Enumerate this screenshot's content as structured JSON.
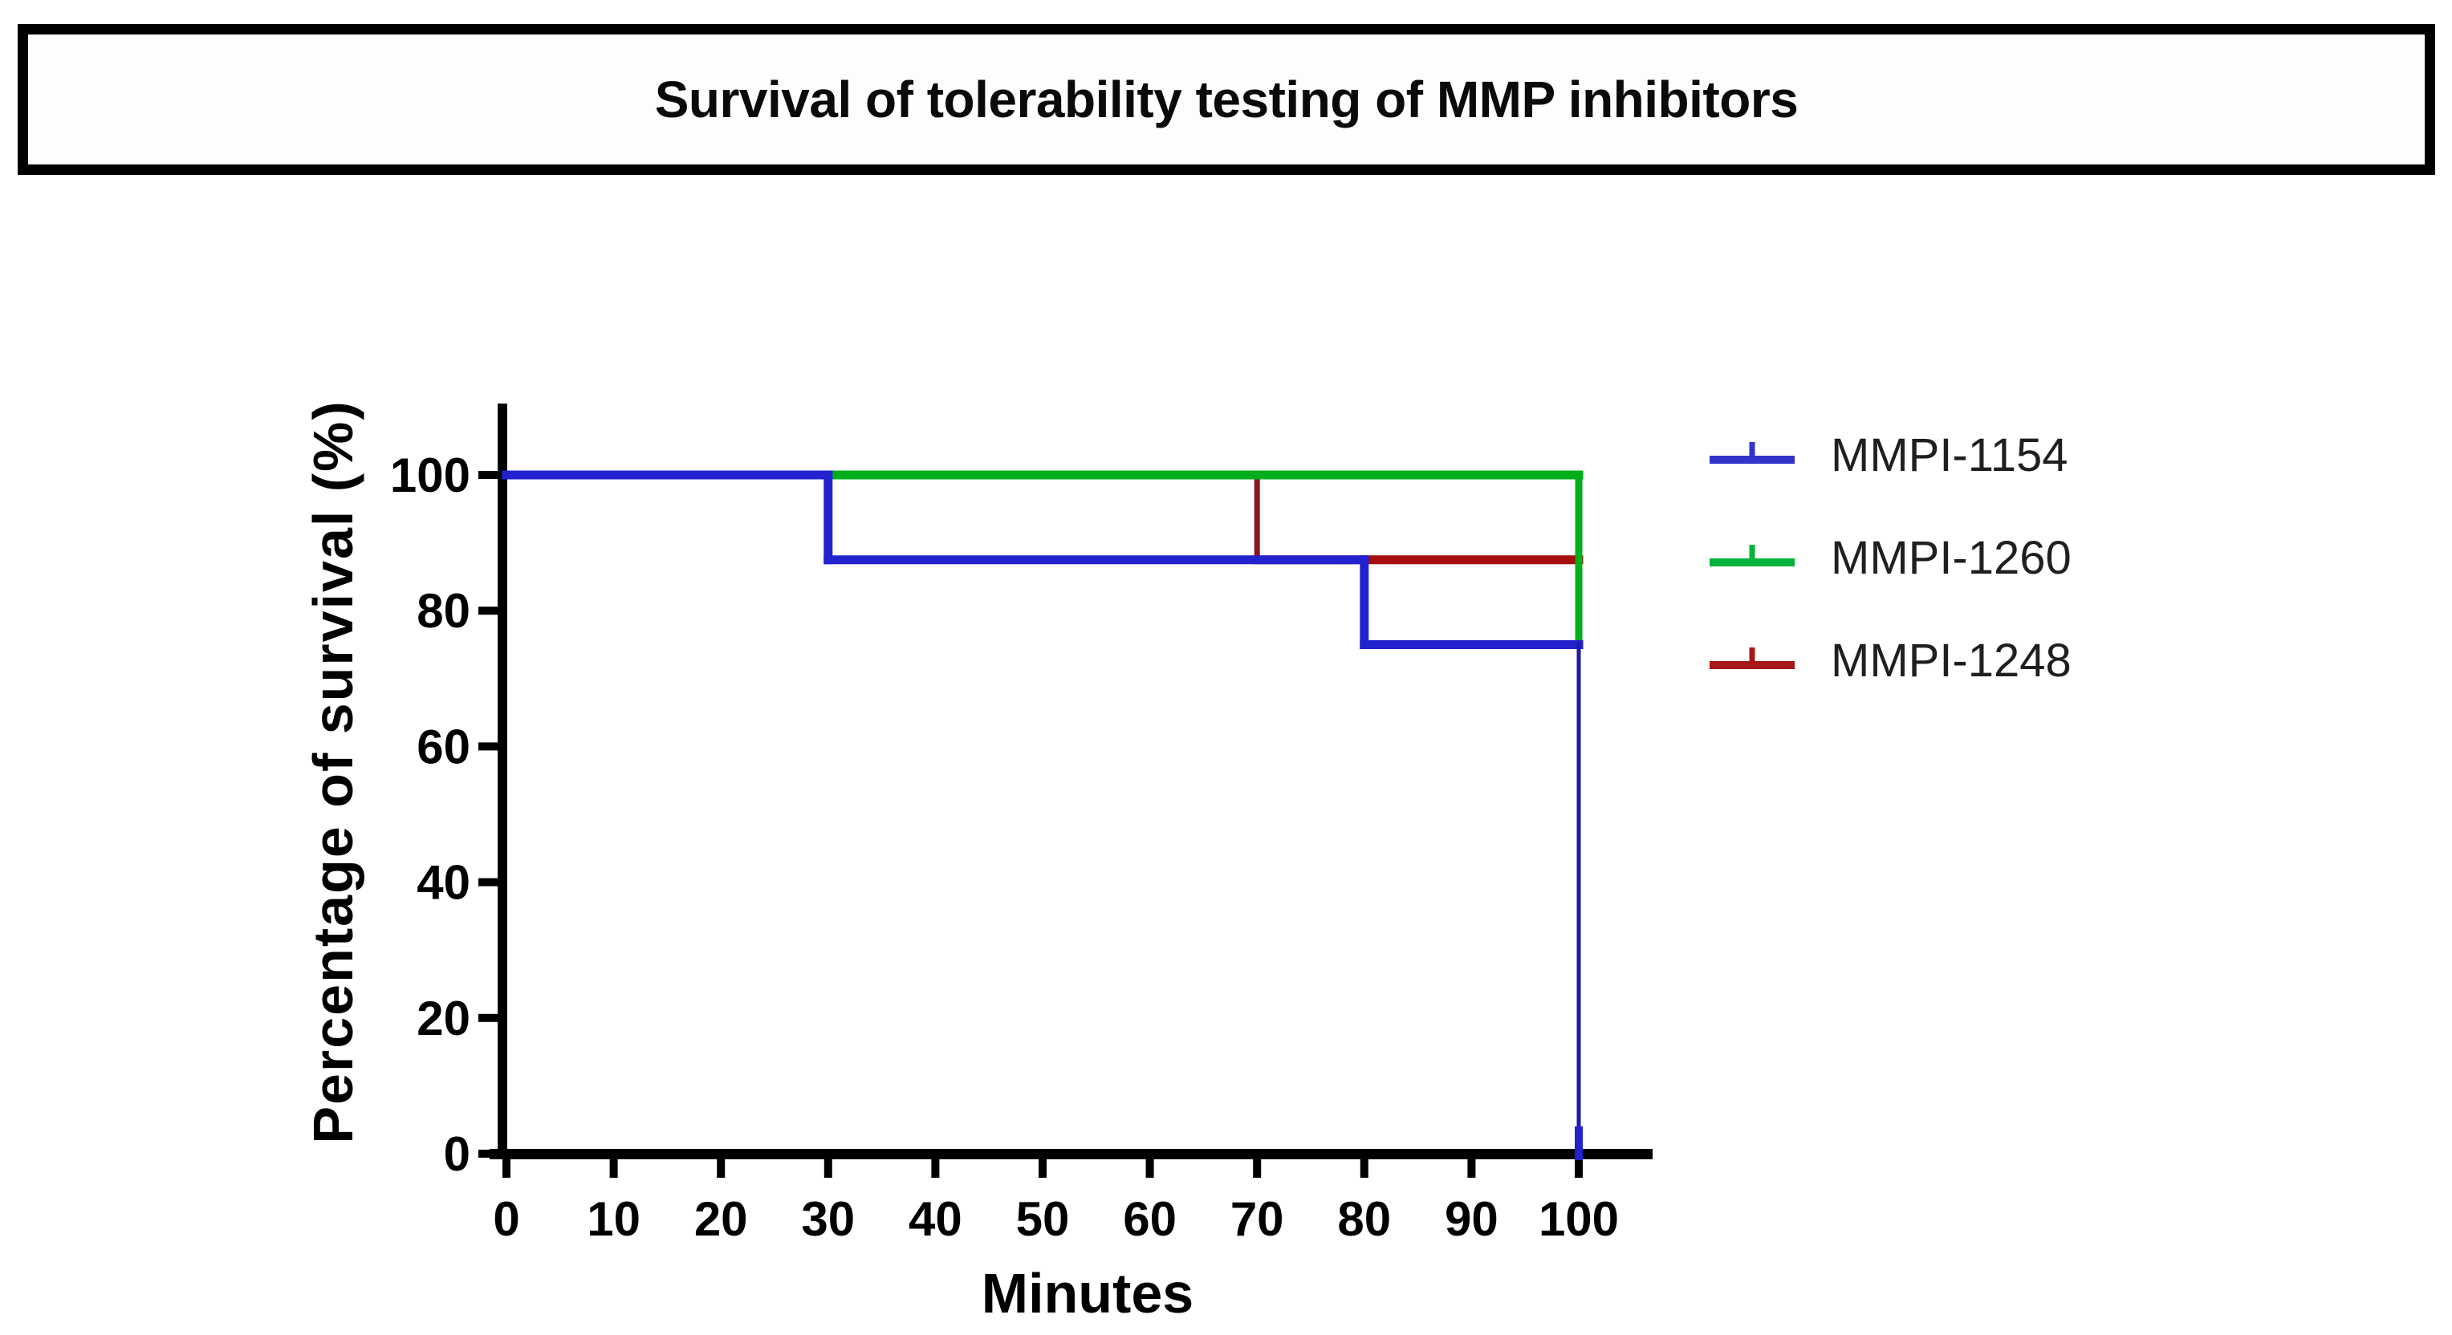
{
  "title": {
    "text": "Survival of tolerability testing of MMP inhibitors"
  },
  "chart_data": {
    "type": "line",
    "subtype": "kaplan-meier-survival-steps",
    "title": "Survival of tolerability testing of MMP inhibitors",
    "xlabel": "Minutes",
    "ylabel": "Percentage of survival (%)",
    "xlim": [
      0,
      105
    ],
    "ylim": [
      0,
      110
    ],
    "x_ticks": [
      0,
      10,
      20,
      30,
      40,
      50,
      60,
      70,
      80,
      90,
      100
    ],
    "y_ticks": [
      0,
      20,
      40,
      60,
      80,
      100
    ],
    "grid": false,
    "legend_position": "right-outside",
    "axis_color": "#000000",
    "background": "#ffffff",
    "series": [
      {
        "name": "MMPI-1248",
        "color": "#A50D0F",
        "drop_color": "#8B1520",
        "z": 1,
        "points": [
          [
            0,
            100
          ],
          [
            70,
            100
          ],
          [
            70,
            87.5
          ],
          [
            100,
            87.5
          ]
        ],
        "thin_drops": [
          70
        ],
        "thin_width": 7,
        "events": "1 of 8 died at 70 min; survival 87.5% at end"
      },
      {
        "name": "MMPI-1260",
        "color": "#00AE1C",
        "z": 2,
        "points": [
          [
            0,
            100
          ],
          [
            100,
            100
          ],
          [
            100,
            75
          ]
        ],
        "thin_drops": [],
        "drop_width": 9,
        "events": "100% survival through 100 min; terminal drop mark at end"
      },
      {
        "name": "MMPI-1154",
        "color": "#2222CE",
        "drop_color": "#1B1BA6",
        "z": 3,
        "points": [
          [
            0,
            100
          ],
          [
            30,
            100
          ],
          [
            30,
            87.5
          ],
          [
            80,
            87.5
          ],
          [
            80,
            75
          ],
          [
            100,
            75
          ],
          [
            100,
            0
          ]
        ],
        "thin_drops": [
          100
        ],
        "thin_width": 5,
        "end_tick": [
          100,
          0
        ],
        "events": "drops to 87.5% at 30 min, 75% at 80 min, 0% at 100 min"
      }
    ]
  },
  "legend": {
    "items": [
      {
        "label": "MMPI-1154",
        "color": "#3333CC"
      },
      {
        "label": "MMPI-1260",
        "color": "#00B33C"
      },
      {
        "label": "MMPI-1248",
        "color": "#A81717"
      }
    ],
    "marker": "horizontal-line-with-censor-tick"
  }
}
